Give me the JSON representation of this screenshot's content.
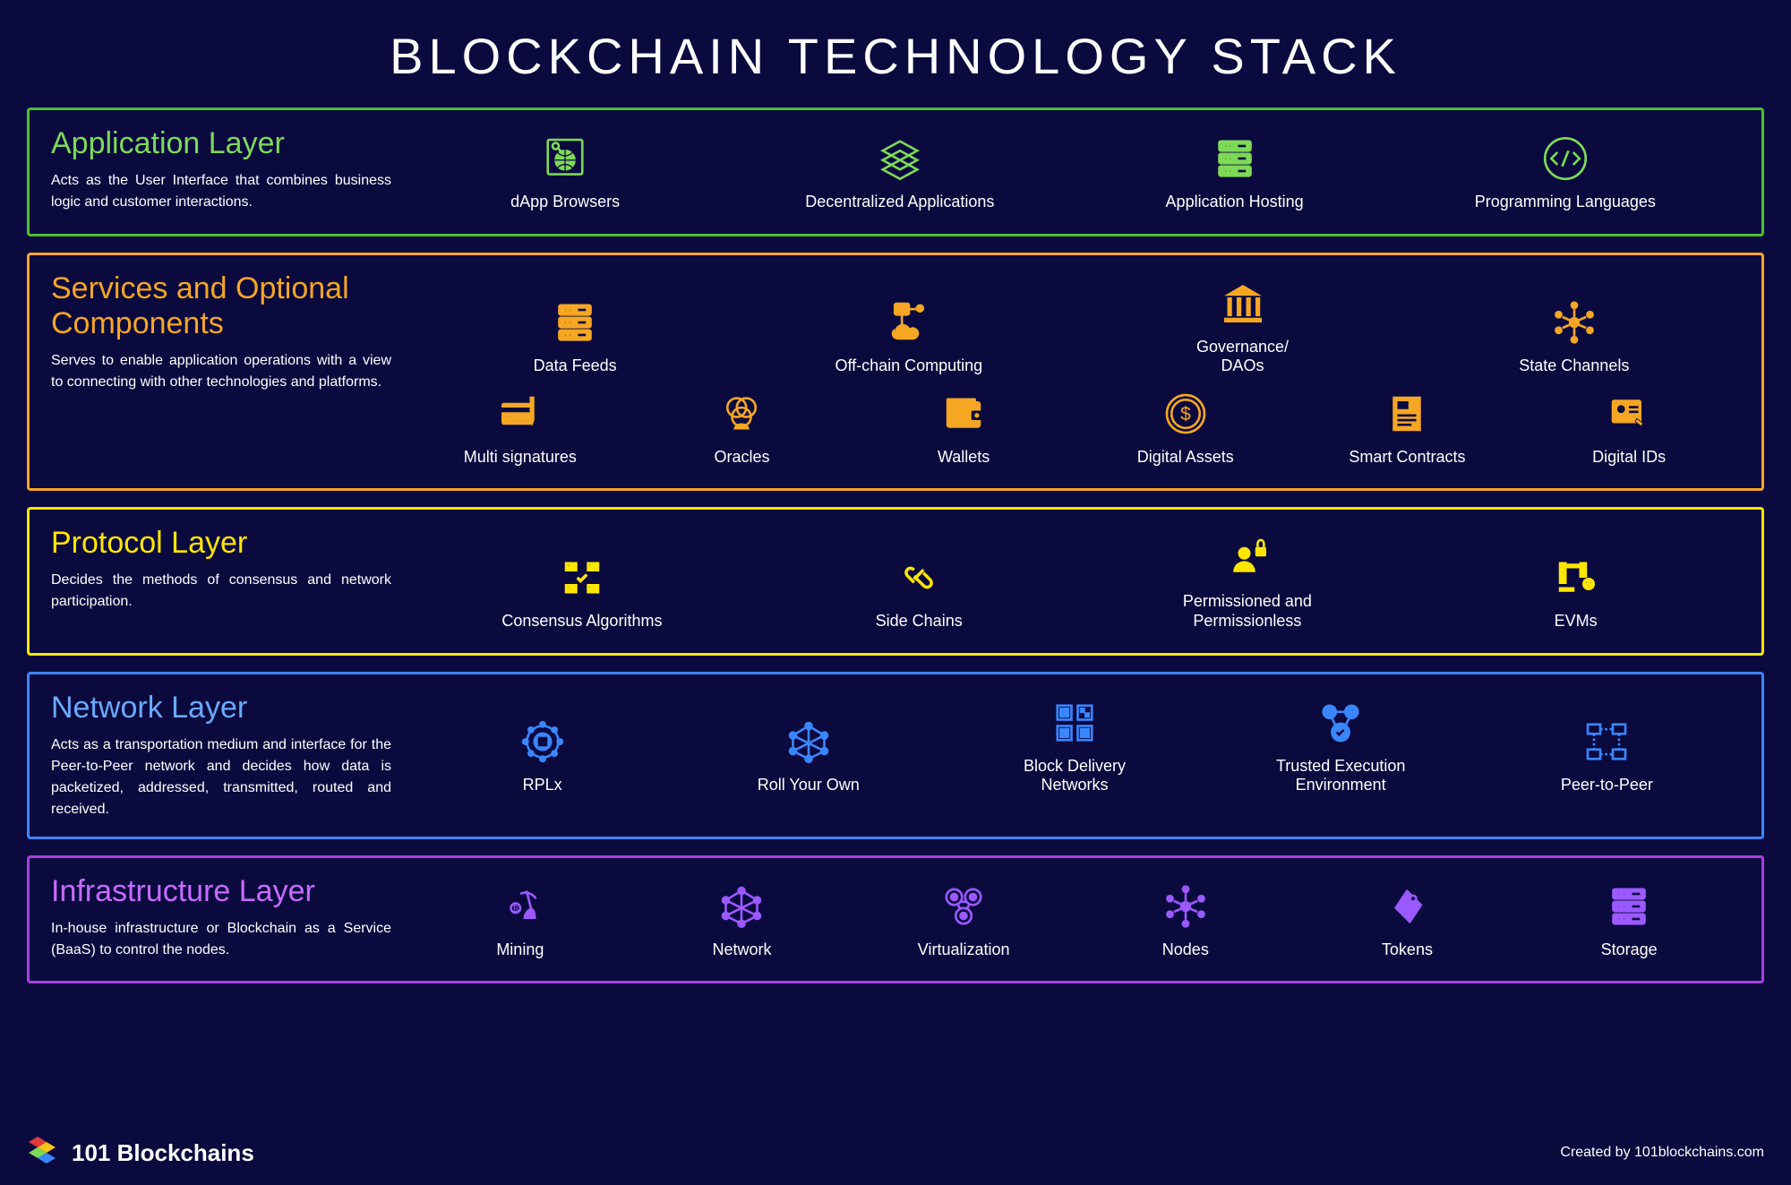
{
  "title": "BLOCKCHAIN TECHNOLOGY STACK",
  "layers": [
    {
      "name": "Application Layer",
      "desc": "Acts as the User Interface that combines business logic and customer interactions.",
      "border_color": "#4bbf2e",
      "title_color": "#7ed957",
      "icon_color": "#7ed957",
      "rows": [
        [
          {
            "label": "dApp Browsers",
            "icon": "globe"
          },
          {
            "label": "Decentralized Applications",
            "icon": "layers"
          },
          {
            "label": "Application Hosting",
            "icon": "server"
          },
          {
            "label": "Programming Languages",
            "icon": "code"
          }
        ]
      ]
    },
    {
      "name": "Services and Optional Components",
      "desc": "Serves to enable application operations with a view to connecting with other technologies and platforms.",
      "border_color": "#f5a623",
      "title_color": "#f5a623",
      "icon_color": "#f5a623",
      "rows": [
        [
          {
            "label": "Data Feeds",
            "icon": "server"
          },
          {
            "label": "Off-chain Computing",
            "icon": "cloud-net"
          },
          {
            "label": "Governance/\nDAOs",
            "icon": "bank"
          },
          {
            "label": "State Channels",
            "icon": "nodes"
          }
        ],
        [
          {
            "label": "Multi signatures",
            "icon": "card-pen"
          },
          {
            "label": "Oracles",
            "icon": "circles"
          },
          {
            "label": "Wallets",
            "icon": "wallet"
          },
          {
            "label": "Digital Assets",
            "icon": "coin"
          },
          {
            "label": "Smart Contracts",
            "icon": "doc"
          },
          {
            "label": "Digital IDs",
            "icon": "id"
          }
        ]
      ]
    },
    {
      "name": "Protocol Layer",
      "desc": "Decides the methods of consensus and network participation.",
      "border_color": "#ffe600",
      "title_color": "#ffe600",
      "icon_color": "#ffe600",
      "rows": [
        [
          {
            "label": "Consensus Algorithms",
            "icon": "cards-check"
          },
          {
            "label": "Side Chains",
            "icon": "chain"
          },
          {
            "label": "Permissioned and\nPermissionless",
            "icon": "person-lock"
          },
          {
            "label": "EVMs",
            "icon": "robot"
          }
        ]
      ]
    },
    {
      "name": "Network Layer",
      "desc": "Acts as a transportation medium and interface for the Peer-to-Peer network and decides how data is packetized, addressed, transmitted, routed and received.",
      "border_color": "#3a86ff",
      "title_color": "#6aa9ff",
      "icon_color": "#3a86ff",
      "rows": [
        [
          {
            "label": "RPLx",
            "icon": "target"
          },
          {
            "label": "Roll Your Own",
            "icon": "mesh"
          },
          {
            "label": "Block Delivery\nNetworks",
            "icon": "blocks"
          },
          {
            "label": "Trusted Execution\nEnvironment",
            "icon": "gears"
          },
          {
            "label": "Peer-to-Peer",
            "icon": "p2p"
          }
        ]
      ]
    },
    {
      "name": "Infrastructure Layer",
      "desc": "In-house infrastructure or Blockchain as a Service (BaaS) to control the nodes.",
      "border_color": "#a83fe0",
      "title_color": "#c96aff",
      "icon_color": "#9b59ff",
      "rows": [
        [
          {
            "label": "Mining",
            "icon": "pickaxe"
          },
          {
            "label": "Network",
            "icon": "mesh"
          },
          {
            "label": "Virtualization",
            "icon": "virtual"
          },
          {
            "label": "Nodes",
            "icon": "nodes"
          },
          {
            "label": "Tokens",
            "icon": "tag"
          },
          {
            "label": "Storage",
            "icon": "server"
          }
        ]
      ]
    }
  ],
  "footer": {
    "brand": "101 Blockchains",
    "credit": "Created by 101blockchains.com"
  }
}
